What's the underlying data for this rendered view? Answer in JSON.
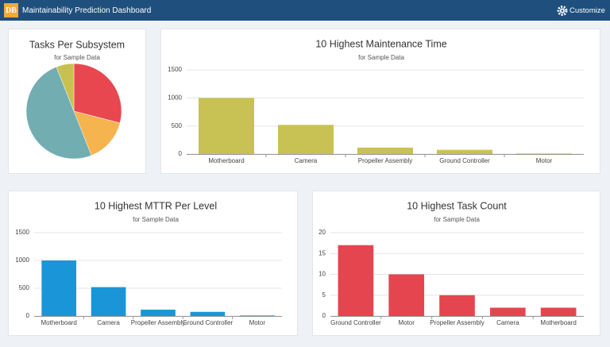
{
  "header": {
    "logo": "DB",
    "title": "Maintainability Prediction Dashboard",
    "button": "Customize"
  },
  "chart_data": [
    {
      "type": "pie",
      "title": "Tasks Per Subsystem",
      "subtitle": "for Sample Data",
      "values": [
        29,
        15,
        50,
        6
      ],
      "colors": [
        "#e8474f",
        "#f5b44e",
        "#72adb2",
        "#c8c152"
      ]
    },
    {
      "type": "bar",
      "title": "10 Highest Maintenance Time",
      "subtitle": "for Sample Data",
      "categories": [
        "Motherboard",
        "Camera",
        "Propeller Assembly",
        "Ground Controller",
        "Motor"
      ],
      "values": [
        1000,
        520,
        115,
        75,
        10
      ],
      "color": "#c8c254",
      "ylim": [
        0,
        1500
      ],
      "yticks": [
        0,
        500,
        1000,
        1500
      ],
      "grid": true
    },
    {
      "type": "bar",
      "title": "10 Highest MTTR Per Level",
      "subtitle": "for Sample Data",
      "categories": [
        "Motherboard",
        "Camera",
        "Propeller Assembly",
        "Ground Controller",
        "Motor"
      ],
      "values": [
        1000,
        520,
        115,
        75,
        10
      ],
      "color": "#1a96d8",
      "ylim": [
        0,
        1500
      ],
      "yticks": [
        0,
        500,
        1000,
        1500
      ],
      "grid": true
    },
    {
      "type": "bar",
      "title": "10 Highest Task Count",
      "subtitle": "for Sample Data",
      "categories": [
        "Ground Controller",
        "Motor",
        "Propeller Assembly",
        "Camera",
        "Motherboard"
      ],
      "values": [
        17,
        10,
        5,
        2,
        2
      ],
      "color": "#e5454f",
      "ylim": [
        0,
        20
      ],
      "yticks": [
        0,
        5,
        10,
        15,
        20
      ],
      "grid": true
    }
  ]
}
